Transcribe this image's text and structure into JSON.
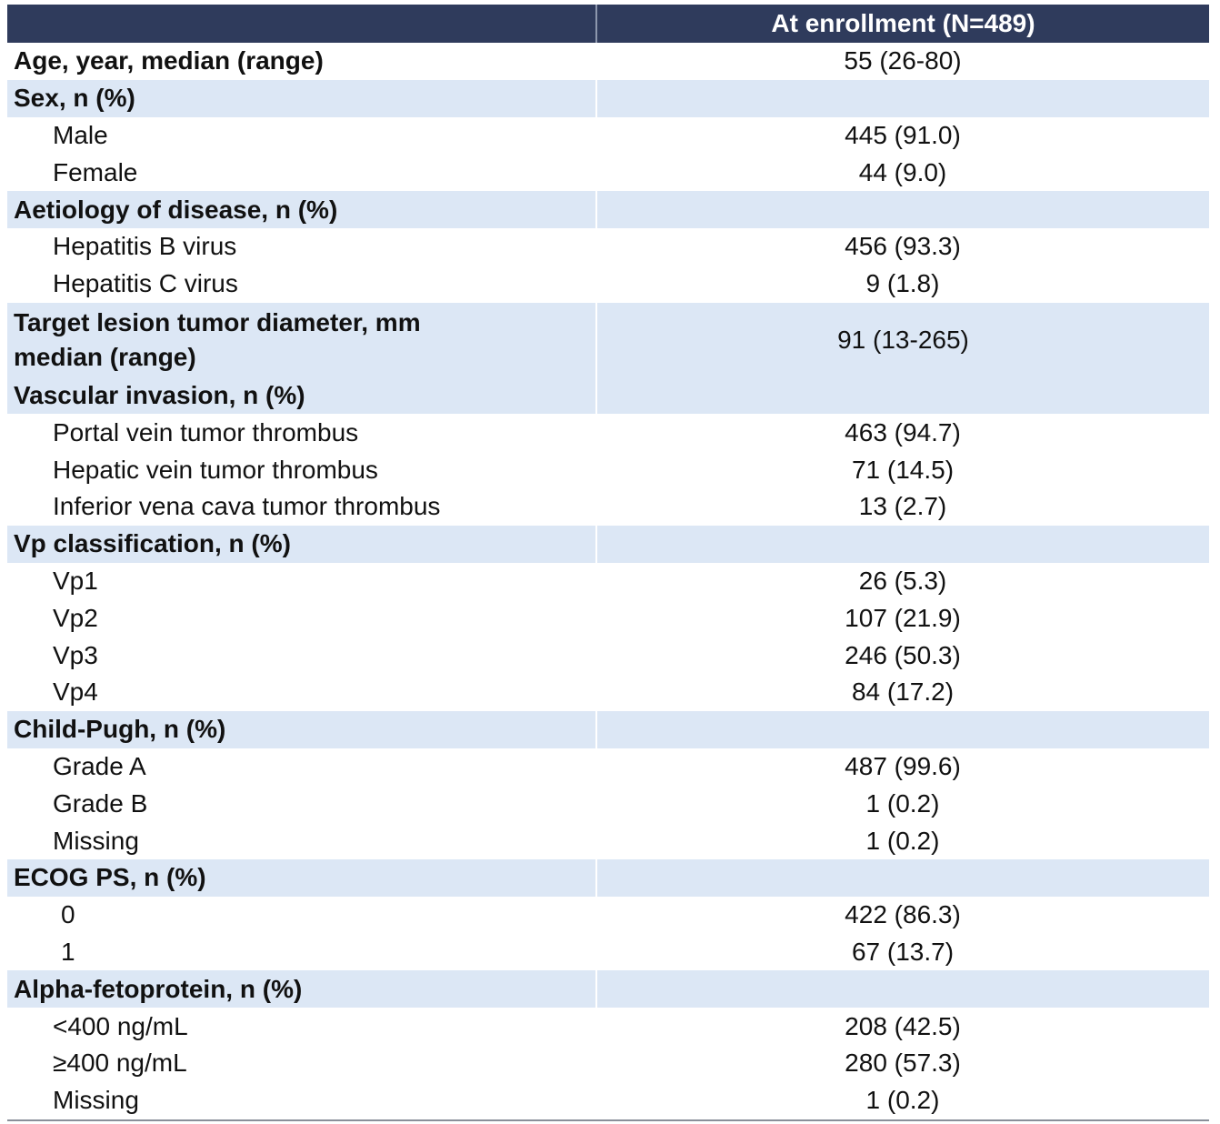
{
  "header": {
    "column": "At enrollment (N=489)"
  },
  "table": {
    "rows": [
      {
        "label": "Age, year, median (range)",
        "value": "55 (26-80)"
      },
      {
        "label": "Sex, n (%)"
      },
      {
        "label": "Male",
        "value": "445 (91.0)"
      },
      {
        "label": "Female",
        "value": "44 (9.0)"
      },
      {
        "label": "Aetiology of disease, n (%)"
      },
      {
        "label": "Hepatitis B virus",
        "value": "456 (93.3)"
      },
      {
        "label": "Hepatitis C virus",
        "value": "9 (1.8)"
      },
      {
        "label": [
          "Target lesion tumor diameter, mm",
          "median (range)"
        ],
        "value": "91 (13-265)"
      },
      {
        "label": "Vascular invasion, n (%)"
      },
      {
        "label": "Portal vein tumor thrombus",
        "value": "463 (94.7)"
      },
      {
        "label": "Hepatic vein tumor thrombus",
        "value": "71 (14.5)"
      },
      {
        "label": "Inferior vena cava tumor thrombus",
        "value": "13 (2.7)"
      },
      {
        "label": "Vp classification, n (%)"
      },
      {
        "label": "Vp1",
        "value": "26 (5.3)"
      },
      {
        "label": "Vp2",
        "value": "107 (21.9)"
      },
      {
        "label": "Vp3",
        "value": "246 (50.3)"
      },
      {
        "label": "Vp4",
        "value": "84 (17.2)"
      },
      {
        "label": "Child-Pugh, n (%)"
      },
      {
        "label": "Grade A",
        "value": "487 (99.6)"
      },
      {
        "label": "Grade B",
        "value": "1 (0.2)"
      },
      {
        "label": "Missing",
        "value": "1 (0.2)"
      },
      {
        "label": "ECOG PS, n (%)"
      },
      {
        "label": "0",
        "value": "422 (86.3)"
      },
      {
        "label": "1",
        "value": "67 (13.7)"
      },
      {
        "label": "Alpha-fetoprotein, n (%)"
      },
      {
        "label": "<400 ng/mL",
        "value": "208 (42.5)"
      },
      {
        "label": "≥400 ng/mL",
        "value": "280 (57.3)"
      },
      {
        "label": "Missing",
        "value": "1 (0.2)"
      }
    ]
  }
}
